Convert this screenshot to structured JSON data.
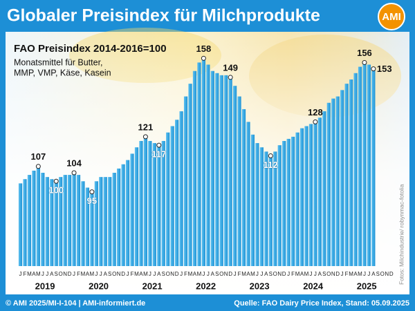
{
  "chart_data": {
    "type": "bar",
    "title": "Globaler Preisindex für Milchprodukte",
    "logo": "AMI",
    "subtitle": "FAO Preisindex  2014-2016=100",
    "note_lines": [
      "Monatsmittel für Butter,",
      "MMP, VMP, Käse, Kasein"
    ],
    "photo_credit": "Fotos: Milchindustrie/ robynmac-fotolia",
    "footer_left": "© AMI 2025/MI-I-104 | AMI-informiert.de",
    "footer_right": "Quelle: FAO Dairy Price Index, Stand: 05.09.2025",
    "year_labels": [
      "2019",
      "2020",
      "2021",
      "2022",
      "2023",
      "2024",
      "2025"
    ],
    "categories": [
      "J",
      "F",
      "M",
      "A",
      "M",
      "J",
      "J",
      "A",
      "S",
      "O",
      "N",
      "D",
      "J",
      "F",
      "M",
      "A",
      "M",
      "J",
      "J",
      "A",
      "S",
      "O",
      "N",
      "D",
      "J",
      "F",
      "M",
      "A",
      "M",
      "J",
      "J",
      "A",
      "S",
      "O",
      "N",
      "D",
      "J",
      "F",
      "M",
      "A",
      "M",
      "J",
      "J",
      "A",
      "S",
      "O",
      "N",
      "D",
      "J",
      "F",
      "M",
      "A",
      "M",
      "J",
      "J",
      "A",
      "S",
      "O",
      "N",
      "D",
      "J",
      "F",
      "M",
      "A",
      "M",
      "J",
      "J",
      "A",
      "S",
      "O",
      "N",
      "D",
      "J",
      "F",
      "M",
      "A",
      "M",
      "J",
      "J",
      "A",
      "S",
      "O",
      "N",
      "D"
    ],
    "values": [
      99,
      101,
      103,
      105,
      107,
      104,
      102,
      101,
      100,
      102,
      103,
      103,
      104,
      103,
      100,
      97,
      95,
      100,
      102,
      102,
      102,
      104,
      106,
      108,
      110,
      113,
      116,
      119,
      121,
      119,
      118,
      117,
      119,
      123,
      126,
      129,
      133,
      140,
      146,
      152,
      156,
      158,
      155,
      152,
      151,
      150,
      150,
      149,
      145,
      140,
      134,
      128,
      122,
      118,
      116,
      114,
      112,
      114,
      117,
      119,
      120,
      121,
      123,
      125,
      126,
      127,
      128,
      130,
      133,
      137,
      139,
      140,
      143,
      146,
      148,
      151,
      154,
      156,
      155,
      153,
      null,
      null,
      null,
      null
    ],
    "value_labels": [
      null,
      null,
      null,
      null,
      "107",
      null,
      null,
      null,
      "100",
      null,
      null,
      null,
      "104",
      null,
      null,
      null,
      "95",
      null,
      null,
      null,
      null,
      null,
      null,
      null,
      null,
      null,
      null,
      null,
      "121",
      null,
      null,
      "117",
      null,
      null,
      null,
      null,
      null,
      null,
      null,
      null,
      null,
      "158",
      null,
      null,
      null,
      null,
      null,
      "149",
      null,
      null,
      null,
      null,
      null,
      null,
      null,
      null,
      "112",
      null,
      null,
      null,
      null,
      null,
      null,
      null,
      null,
      null,
      "128",
      null,
      null,
      null,
      null,
      null,
      null,
      null,
      null,
      null,
      null,
      "156",
      null,
      "153",
      null,
      null,
      null,
      null
    ],
    "color": "#2ba3e2",
    "ylim": [
      60,
      170
    ]
  }
}
